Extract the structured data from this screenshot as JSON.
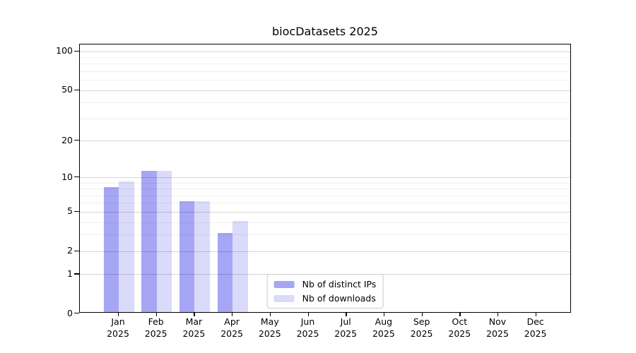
{
  "title": "biocDatasets 2025",
  "legend": {
    "items": [
      {
        "label": "Nb of distinct IPs"
      },
      {
        "label": "Nb of downloads"
      }
    ]
  },
  "colors": {
    "bar_distinct_ips": "#a6a6f5",
    "bar_downloads": "#dadafa",
    "grid_major": "rgba(0,0,0,0.17)",
    "grid_minor": "rgba(0,0,0,0.06)",
    "axis": "#000000",
    "legend_border": "#cccccc",
    "background": "#ffffff",
    "text": "#000000"
  },
  "chart_data": {
    "type": "bar",
    "title": "biocDatasets 2025",
    "categories": [
      "Jan",
      "Feb",
      "Mar",
      "Apr",
      "May",
      "Jun",
      "Jul",
      "Aug",
      "Sep",
      "Oct",
      "Nov",
      "Dec"
    ],
    "tick_year": "2025",
    "series": [
      {
        "name": "Nb of distinct IPs",
        "color": "#a6a6f5",
        "values": [
          8,
          11,
          6,
          3,
          0,
          0,
          0,
          0,
          0,
          0,
          0,
          0
        ]
      },
      {
        "name": "Nb of downloads",
        "color": "#dadafa",
        "values": [
          9,
          11,
          6,
          4,
          0,
          0,
          0,
          0,
          0,
          0,
          0,
          0
        ]
      }
    ],
    "xlabel": "",
    "ylabel": "",
    "y_scale": "log1p",
    "y_axis_max": 112,
    "y_ticks_major": [
      0,
      1,
      2,
      5,
      10,
      20,
      50,
      100
    ],
    "y_ticks_minor": [
      3,
      4,
      6,
      7,
      8,
      9,
      30,
      40,
      60,
      70,
      80,
      90
    ],
    "grid": "horizontal major+minor, drawn above bars",
    "legend_position": "lower center"
  }
}
